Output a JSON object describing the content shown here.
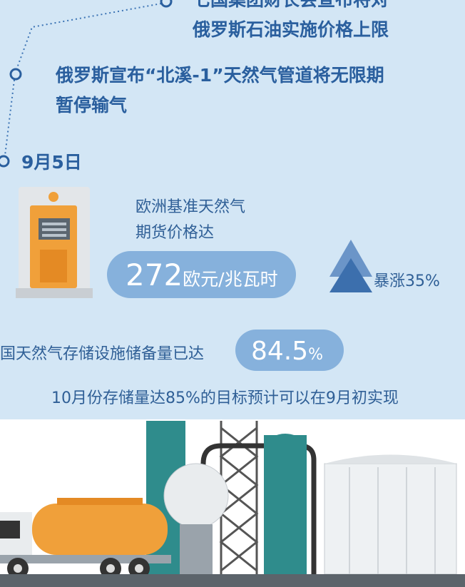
{
  "timeline": [
    {
      "lines": [
        "七国集团财长会宣布将对",
        "俄罗斯石油实施价格上限"
      ]
    },
    {
      "lines": [
        "俄罗斯宣布“北溪-1”天然气管道将无限期",
        "暂停输气"
      ]
    }
  ],
  "date": "9月5日",
  "price": {
    "label": [
      "欧洲基准天然气",
      "期货价格达"
    ],
    "value": "272",
    "unit": "欧元/兆瓦时",
    "change": "暴涨35%"
  },
  "storage": {
    "label": "国天然气存储设施储备量已达",
    "value": "84.5",
    "unit": "%"
  },
  "note": "10月份存储量达85%的目标预计可以在9月初实现"
}
